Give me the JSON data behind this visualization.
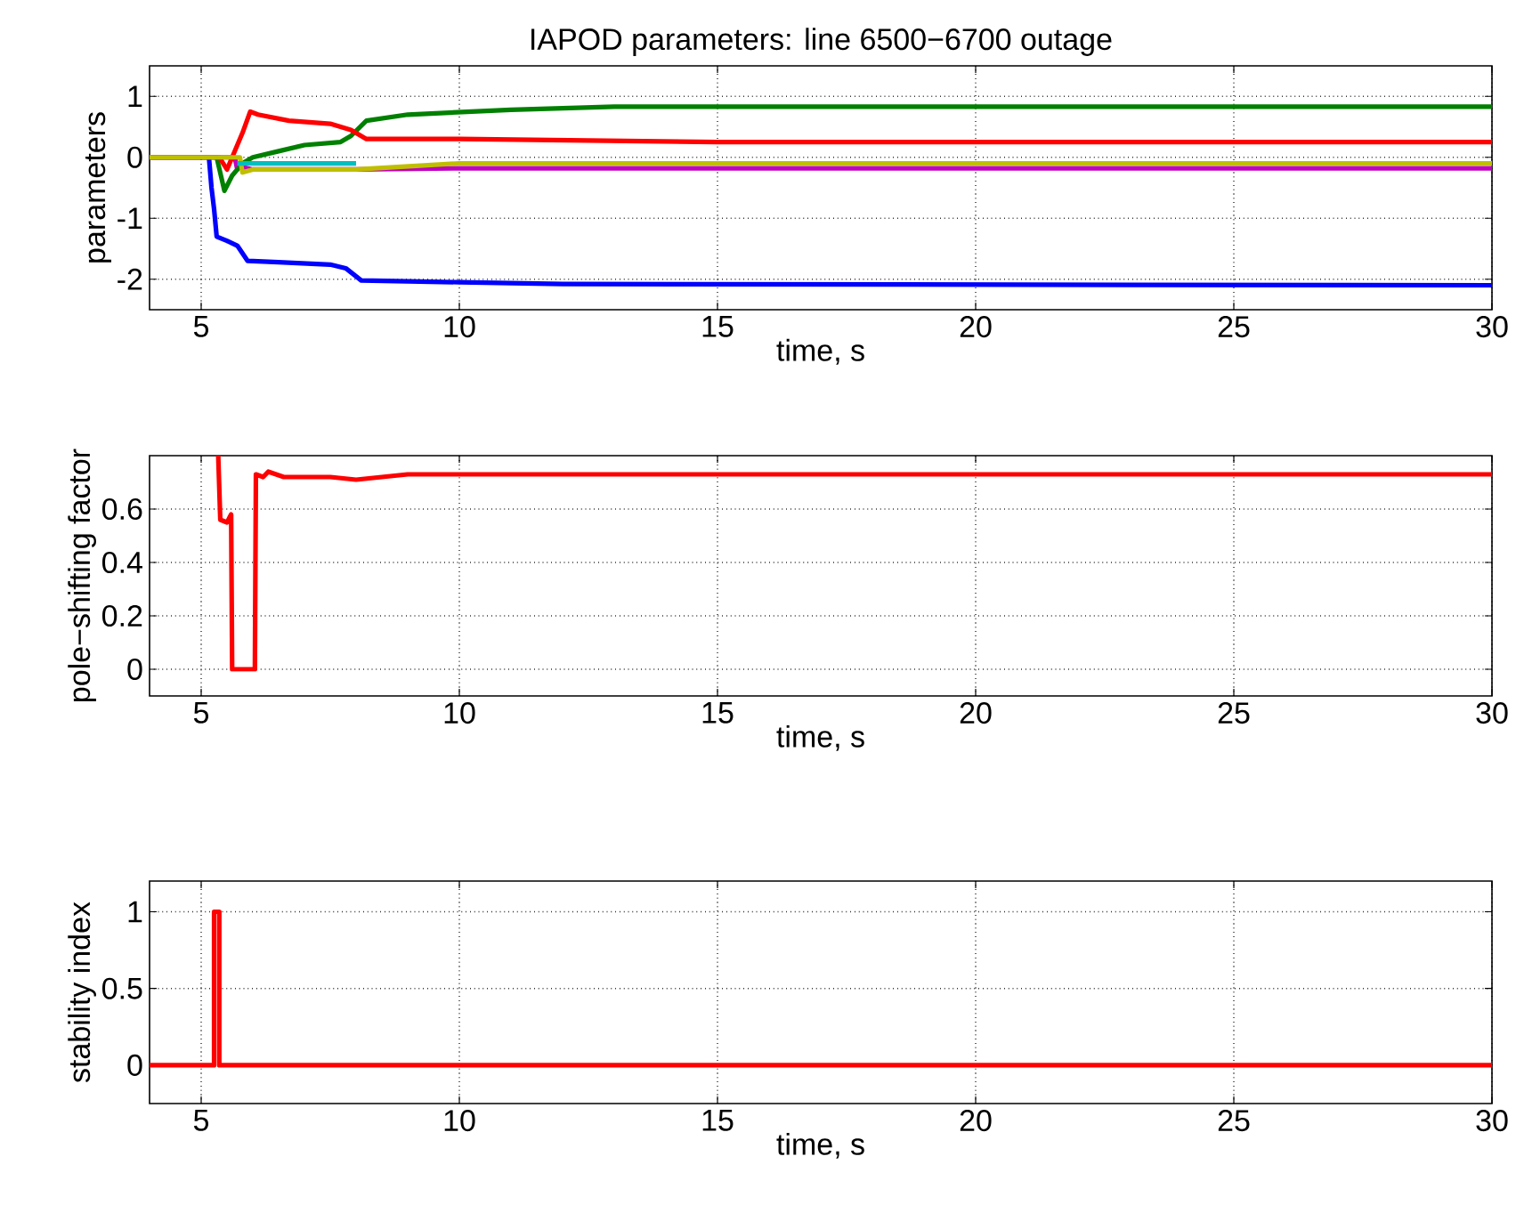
{
  "chart_data": [
    {
      "type": "line",
      "title": "IAPOD parameters: line 6500−6700 outage",
      "xlabel": "time, s",
      "ylabel": "parameters",
      "xlim": [
        4,
        30
      ],
      "ylim": [
        -2.5,
        1.5
      ],
      "xticks": [
        5,
        10,
        15,
        20,
        25,
        30
      ],
      "yticks": [
        -2,
        -1,
        0,
        1
      ],
      "grid": true,
      "series": [
        {
          "color": "#0000ff",
          "x": [
            4,
            5.15,
            5.2,
            5.25,
            5.3,
            5.5,
            5.7,
            5.9,
            6.5,
            7.5,
            7.8,
            8.1,
            10,
            12,
            30
          ],
          "values": [
            0,
            0,
            -0.5,
            -0.85,
            -1.3,
            -1.37,
            -1.45,
            -1.7,
            -1.72,
            -1.76,
            -1.82,
            -2.02,
            -2.05,
            -2.08,
            -2.1
          ]
        },
        {
          "color": "#bf00bf",
          "x": [
            4,
            5.65,
            5.7,
            5.75,
            6,
            8,
            10,
            30
          ],
          "values": [
            0,
            0,
            -0.2,
            -0.15,
            -0.2,
            -0.2,
            -0.18,
            -0.18
          ]
        },
        {
          "color": "#008000",
          "x": [
            4,
            5.3,
            5.45,
            5.6,
            5.8,
            6,
            6.5,
            7,
            7.7,
            7.9,
            8.2,
            9,
            11,
            13,
            30
          ],
          "values": [
            0,
            0,
            -0.55,
            -0.3,
            -0.1,
            0,
            0.1,
            0.2,
            0.25,
            0.35,
            0.6,
            0.7,
            0.78,
            0.83,
            0.83
          ]
        },
        {
          "color": "#ff0000",
          "x": [
            4,
            5.35,
            5.5,
            5.7,
            5.8,
            5.95,
            6.1,
            6.7,
            7.5,
            7.9,
            8.2,
            10,
            15,
            30
          ],
          "values": [
            0,
            0,
            -0.2,
            0.2,
            0.4,
            0.75,
            0.7,
            0.6,
            0.55,
            0.45,
            0.3,
            0.3,
            0.25,
            0.25
          ]
        },
        {
          "color": "#bfbf00",
          "x": [
            4,
            5.75,
            5.8,
            6,
            8,
            10,
            30
          ],
          "values": [
            0,
            0,
            -0.25,
            -0.2,
            -0.2,
            -0.1,
            -0.1
          ]
        },
        {
          "color": "#00bfbf",
          "x": [
            5.7,
            6,
            7,
            8
          ],
          "values": [
            -0.1,
            -0.1,
            -0.1,
            -0.1
          ]
        }
      ]
    },
    {
      "type": "line",
      "xlabel": "time, s",
      "ylabel": "pole−shifting factor",
      "xlim": [
        4,
        30
      ],
      "ylim": [
        -0.1,
        0.8
      ],
      "xticks": [
        5,
        10,
        15,
        20,
        25,
        30
      ],
      "yticks": [
        0,
        0.2,
        0.4,
        0.6
      ],
      "grid": true,
      "series": [
        {
          "color": "#ff0000",
          "x": [
            5.33,
            5.37,
            5.5,
            5.58,
            5.6,
            6.04,
            6.06,
            6.2,
            6.3,
            6.6,
            7.5,
            8,
            9,
            30
          ],
          "values": [
            0.8,
            0.56,
            0.55,
            0.58,
            0,
            0,
            0.73,
            0.72,
            0.74,
            0.72,
            0.72,
            0.71,
            0.73,
            0.73
          ]
        }
      ]
    },
    {
      "type": "line",
      "xlabel": "time, s",
      "ylabel": "stability index",
      "xlim": [
        4,
        30
      ],
      "ylim": [
        -0.25,
        1.2
      ],
      "xticks": [
        5,
        10,
        15,
        20,
        25,
        30
      ],
      "yticks": [
        0,
        0.5,
        1
      ],
      "grid": true,
      "series": [
        {
          "color": "#ff0000",
          "x": [
            4,
            5.25,
            5.25,
            5.35,
            5.35,
            30
          ],
          "values": [
            0,
            0,
            1,
            1,
            0,
            0
          ]
        }
      ]
    }
  ]
}
